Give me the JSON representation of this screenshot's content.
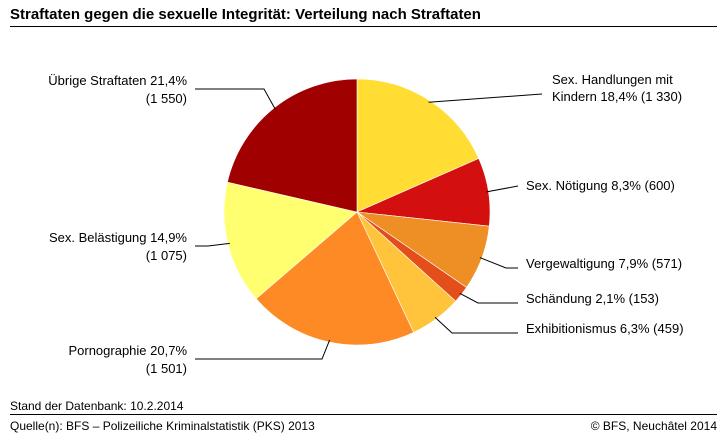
{
  "title": "Straftaten gegen die sexuelle Integrität: Verteilung nach Straftaten",
  "footer": {
    "stand": "Stand der Datenbank: 10.2.2014",
    "source": "Quelle(n): BFS – Polizeiliche Kriminalstatistik (PKS) 2013",
    "copyright": "© BFS, Neuchâtel 2014"
  },
  "chart_data": {
    "type": "pie",
    "slices": [
      {
        "name": "Sex. Handlungen mit Kindern",
        "percent": 18.4,
        "count": 1330,
        "color": "#ffdd33",
        "label_lines": [
          "Sex. Handlungen mit",
          "Kindern 18,4% (1 330)"
        ]
      },
      {
        "name": "Sex. Nötigung",
        "percent": 8.3,
        "count": 600,
        "color": "#d40f0f",
        "label_lines": [
          "Sex. Nötigung 8,3% (600)"
        ]
      },
      {
        "name": "Vergewaltigung",
        "percent": 7.9,
        "count": 571,
        "color": "#ee8f25",
        "label_lines": [
          "Vergewaltigung 7,9% (571)"
        ]
      },
      {
        "name": "Schändung",
        "percent": 2.1,
        "count": 153,
        "color": "#e34e1b",
        "label_lines": [
          "Schändung 2,1% (153)"
        ]
      },
      {
        "name": "Exhibitionismus",
        "percent": 6.3,
        "count": 459,
        "color": "#ffc43c",
        "label_lines": [
          "Exhibitionismus 6,3% (459)"
        ]
      },
      {
        "name": "Pornographie",
        "percent": 20.7,
        "count": 1501,
        "color": "#fd8a24",
        "label_lines": [
          "Pornographie 20,7%",
          "(1 501)"
        ]
      },
      {
        "name": "Sex. Belästigung",
        "percent": 14.9,
        "count": 1075,
        "color": "#ffff70",
        "label_lines": [
          "Sex. Belästigung 14,9%",
          "(1 075)"
        ]
      },
      {
        "name": "Übrige Straftaten",
        "percent": 21.4,
        "count": 1550,
        "color": "#a00000",
        "label_lines": [
          "Übrige Straftaten 21,4%",
          "(1 550)"
        ]
      }
    ]
  }
}
